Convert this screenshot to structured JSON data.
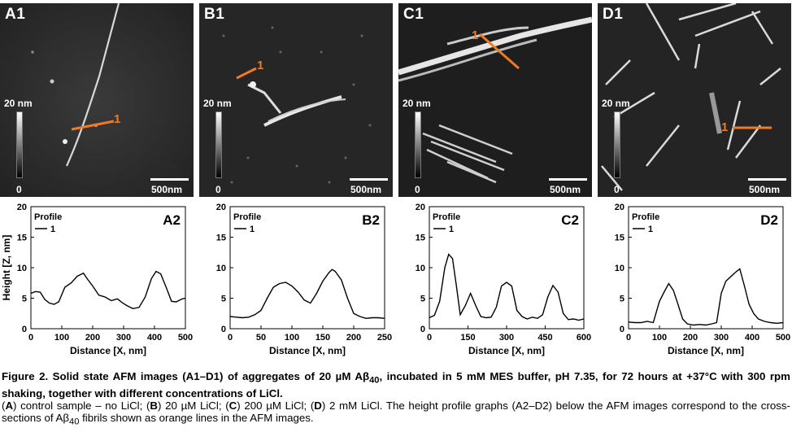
{
  "figure": {
    "caption": {
      "title": {
        "pre": "Figure 2. Solid state AFM images (A1–D1) of aggregates of 20 µM Aβ",
        "sub": "40",
        "post": ", incubated in 5 mM MES buffer, pH 7.35, for 72 hours at +37°C with 300 rpm shaking, together with different concentrations of LiCl."
      },
      "body": {
        "a_letter": "A",
        "a_text": ") control sample – no LiCl; (",
        "b_letter": "B",
        "b_text": ") 20 µM LiCl; (",
        "c_letter": "C",
        "c_text": ") 200 µM LiCl; (",
        "d_letter": "D",
        "d_text": ") 2 mM LiCl. The height profile graphs (A2–D2) below the AFM images correspond to the cross-sections of Aβ",
        "sub": "40",
        "post": " fibrils shown as orange lines in the AFM images.",
        "open": "("
      }
    },
    "afm_panels": [
      {
        "label": "A1",
        "scale_top": "20 nm",
        "scale_bottom": "0",
        "scalebar": "500nm",
        "profile_mark": "1"
      },
      {
        "label": "B1",
        "scale_top": "20 nm",
        "scale_bottom": "0",
        "scalebar": "500nm",
        "profile_mark": "1"
      },
      {
        "label": "C1",
        "scale_top": "20 nm",
        "scale_bottom": "0",
        "scalebar": "500nm",
        "profile_mark": "1"
      },
      {
        "label": "D1",
        "scale_top": "20 nm",
        "scale_bottom": "0",
        "scalebar": "500nm",
        "profile_mark": "1"
      }
    ],
    "colors": {
      "profile_line": "#f07a24",
      "afm_background": "#1a1a1a",
      "fibril": "#e8e8e8"
    }
  },
  "chart_data": [
    {
      "type": "line",
      "panel": "A2",
      "xlabel": "Distance [X, nm]",
      "ylabel": "Height [Z, nm]",
      "xlim": [
        0,
        500
      ],
      "ylim": [
        0,
        20
      ],
      "xticks": [
        0,
        100,
        200,
        300,
        400,
        500
      ],
      "yticks": [
        0,
        5,
        10,
        15,
        20
      ],
      "legend_title": "Profile",
      "legend_placement": "top-left",
      "series": [
        {
          "name": "1",
          "x": [
            0,
            15,
            30,
            45,
            60,
            75,
            90,
            110,
            130,
            150,
            170,
            185,
            200,
            220,
            240,
            260,
            280,
            295,
            310,
            330,
            350,
            370,
            390,
            405,
            420,
            440,
            455,
            470,
            490,
            500
          ],
          "y": [
            5.8,
            6.1,
            6.0,
            4.8,
            4.2,
            4.0,
            4.4,
            6.8,
            7.5,
            8.6,
            9.1,
            8.0,
            7.0,
            5.5,
            5.2,
            4.6,
            4.9,
            4.3,
            3.8,
            3.3,
            3.5,
            5.2,
            8.2,
            9.4,
            9.0,
            6.5,
            4.5,
            4.4,
            4.9,
            5.0
          ]
        }
      ]
    },
    {
      "type": "line",
      "panel": "B2",
      "xlabel": "Distance [X, nm]",
      "ylabel": "",
      "xlim": [
        0,
        250
      ],
      "ylim": [
        0,
        20
      ],
      "xticks": [
        0,
        50,
        100,
        150,
        200,
        250
      ],
      "yticks": [
        0,
        5,
        10,
        15,
        20
      ],
      "legend_title": "Profile",
      "legend_placement": "top-left",
      "series": [
        {
          "name": "1",
          "x": [
            0,
            10,
            20,
            30,
            40,
            50,
            60,
            70,
            80,
            90,
            100,
            110,
            120,
            130,
            140,
            150,
            160,
            165,
            170,
            180,
            190,
            200,
            210,
            220,
            230,
            240,
            250
          ],
          "y": [
            2.0,
            1.9,
            1.8,
            1.9,
            2.3,
            3.0,
            5.0,
            6.8,
            7.4,
            7.6,
            7.0,
            6.0,
            4.7,
            4.2,
            5.8,
            7.8,
            9.2,
            9.7,
            9.4,
            8.0,
            5.0,
            2.5,
            2.0,
            1.7,
            1.8,
            1.8,
            1.7
          ]
        }
      ]
    },
    {
      "type": "line",
      "panel": "C2",
      "xlabel": "Distance [X, nm]",
      "ylabel": "",
      "xlim": [
        0,
        600
      ],
      "ylim": [
        0,
        20
      ],
      "xticks": [
        0,
        150,
        300,
        450,
        600
      ],
      "yticks": [
        0,
        5,
        10,
        15,
        20
      ],
      "legend_title": "Profile",
      "legend_placement": "top-left",
      "series": [
        {
          "name": "1",
          "x": [
            0,
            20,
            40,
            60,
            75,
            90,
            105,
            120,
            140,
            160,
            180,
            200,
            220,
            240,
            260,
            280,
            300,
            320,
            340,
            360,
            380,
            400,
            420,
            440,
            460,
            480,
            500,
            520,
            540,
            560,
            580,
            600
          ],
          "y": [
            1.8,
            2.2,
            4.5,
            10.0,
            12.2,
            11.5,
            7.0,
            2.3,
            3.8,
            5.8,
            3.8,
            2.0,
            1.8,
            1.9,
            3.5,
            7.0,
            7.6,
            7.0,
            3.0,
            2.0,
            1.6,
            1.9,
            1.7,
            2.3,
            5.2,
            7.1,
            6.0,
            2.5,
            1.5,
            1.6,
            1.4,
            1.6
          ]
        }
      ]
    },
    {
      "type": "line",
      "panel": "D2",
      "xlabel": "Distance [X, nm]",
      "ylabel": "",
      "xlim": [
        0,
        500
      ],
      "ylim": [
        0,
        20
      ],
      "xticks": [
        0,
        100,
        200,
        300,
        400,
        500
      ],
      "yticks": [
        0,
        5,
        10,
        15,
        20
      ],
      "legend_title": "Profile",
      "legend_placement": "top-left",
      "series": [
        {
          "name": "1",
          "x": [
            0,
            20,
            40,
            60,
            80,
            100,
            115,
            130,
            145,
            160,
            175,
            190,
            210,
            230,
            250,
            270,
            285,
            300,
            315,
            330,
            345,
            360,
            375,
            390,
            405,
            420,
            440,
            460,
            480,
            500
          ],
          "y": [
            1.1,
            1.0,
            1.0,
            1.2,
            1.0,
            4.5,
            6.0,
            7.4,
            6.3,
            4.0,
            1.6,
            0.8,
            0.6,
            0.7,
            0.6,
            0.8,
            1.0,
            5.8,
            7.8,
            8.5,
            9.2,
            9.8,
            7.0,
            4.0,
            2.5,
            1.6,
            1.2,
            1.0,
            0.9,
            1.0
          ]
        }
      ]
    }
  ]
}
